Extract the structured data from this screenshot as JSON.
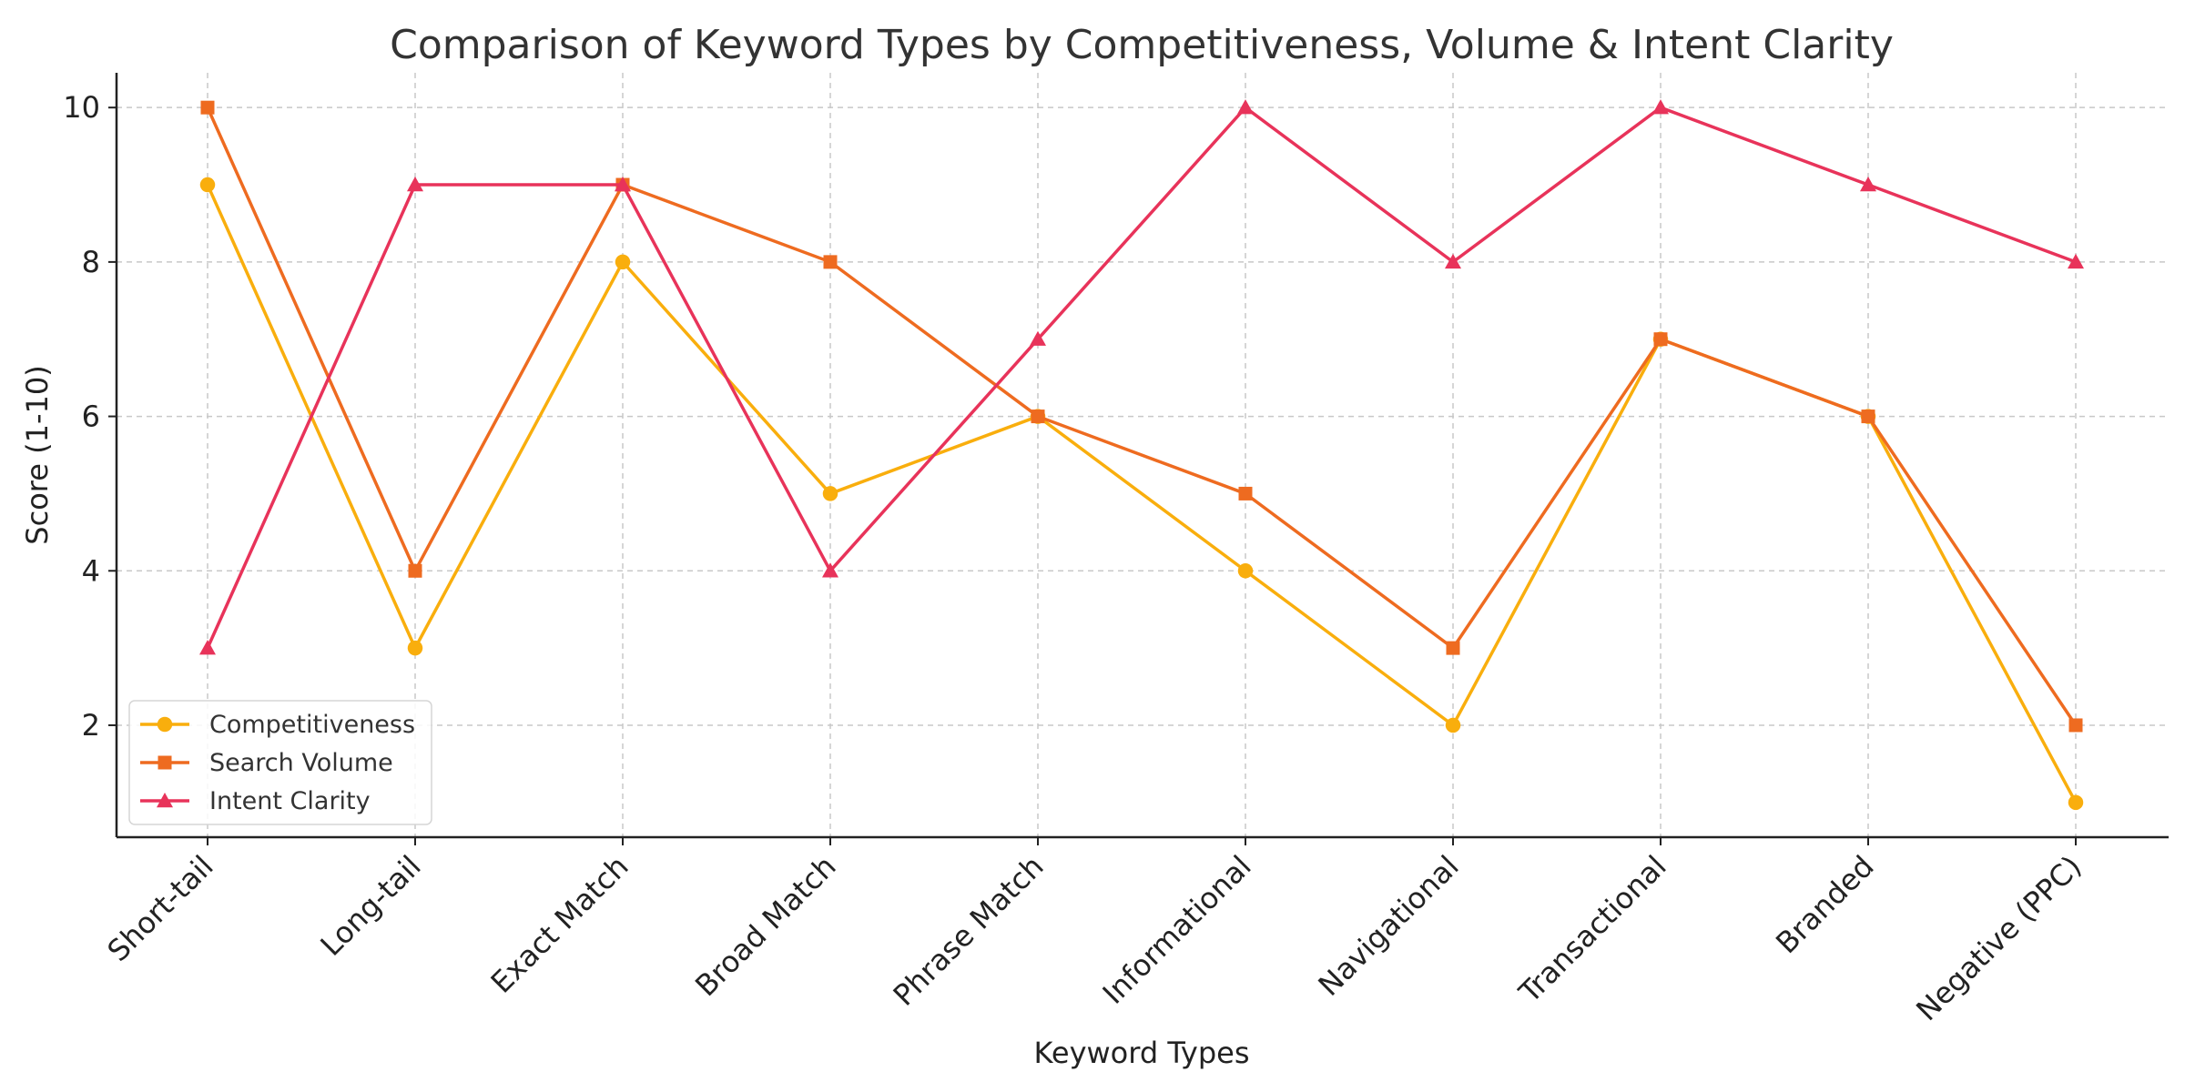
{
  "chart_data": {
    "type": "line",
    "title": "Comparison of Keyword Types by Competitiveness, Volume & Intent Clarity",
    "xlabel": "Keyword Types",
    "ylabel": "Score (1-10)",
    "categories": [
      "Short-tail",
      "Long-tail",
      "Exact Match",
      "Broad Match",
      "Phrase Match",
      "Informational",
      "Navigational",
      "Transactional",
      "Branded",
      "Negative (PPC)"
    ],
    "ylim": [
      0.55,
      10.45
    ],
    "yticks": [
      2,
      4,
      6,
      8,
      10
    ],
    "grid": true,
    "legend_position": "bottom-left",
    "series": [
      {
        "name": "Competitiveness",
        "marker": "circle",
        "color": "#F9AE0D",
        "values": [
          9,
          3,
          8,
          5,
          6,
          4,
          2,
          7,
          6,
          1
        ]
      },
      {
        "name": "Search Volume",
        "marker": "square",
        "color": "#EE6B20",
        "values": [
          10,
          4,
          9,
          8,
          6,
          5,
          3,
          7,
          6,
          2
        ]
      },
      {
        "name": "Intent Clarity",
        "marker": "triangle",
        "color": "#E8335A",
        "values": [
          3,
          9,
          9,
          4,
          7,
          10,
          8,
          10,
          9,
          8
        ]
      }
    ]
  }
}
